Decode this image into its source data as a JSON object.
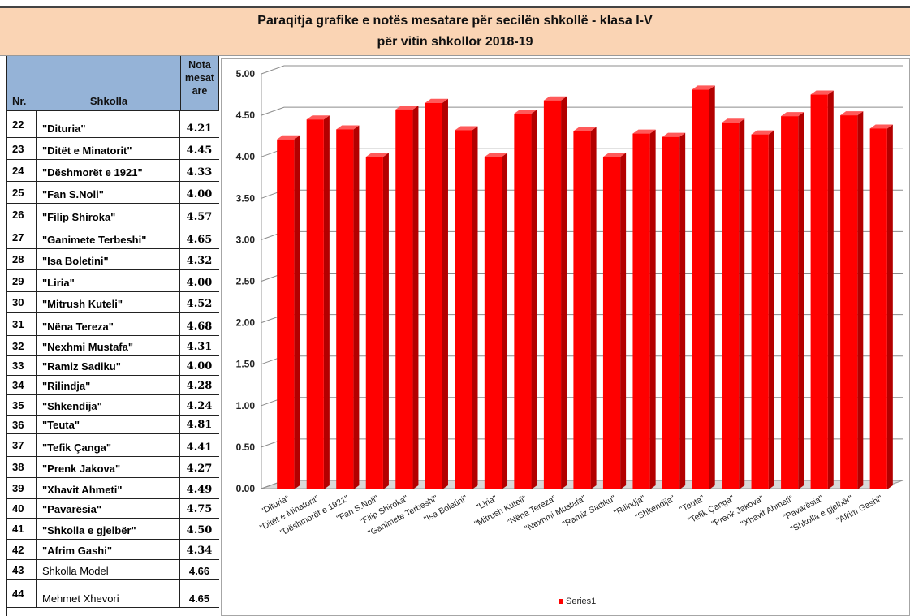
{
  "title": {
    "line1": "Paraqitja grafike e notës mesatare për secilën shkollë - klasa I-V",
    "line2": "për vitin shkollor  2018-19"
  },
  "table": {
    "headers": {
      "nr": "Nr.",
      "school": "Shkolla",
      "grade": "Nota mesat are"
    },
    "rows": [
      {
        "nr": "22",
        "name": "\"Dituria\"",
        "value": "4.21"
      },
      {
        "nr": "23",
        "name": "\"Ditët e Minatorit\"",
        "value": "4.45"
      },
      {
        "nr": "24",
        "name": "\"Dëshmorët e 1921\"",
        "value": "4.33"
      },
      {
        "nr": "25",
        "name": "\"Fan S.Noli\"",
        "value": "4.00"
      },
      {
        "nr": "26",
        "name": "\"Filip Shiroka\"",
        "value": "4.57"
      },
      {
        "nr": "27",
        "name": "\"Ganimete Terbeshi\"",
        "value": "4.65"
      },
      {
        "nr": "28",
        "name": "\"Isa Boletini\"",
        "value": "4.32"
      },
      {
        "nr": "29",
        "name": "\"Liria\"",
        "value": "4.00"
      },
      {
        "nr": "30",
        "name": "\"Mitrush Kuteli\"",
        "value": "4.52"
      },
      {
        "nr": "31",
        "name": "\"Nëna Tereza\"",
        "value": "4.68"
      },
      {
        "nr": "32",
        "name": "\"Nexhmi Mustafa\"",
        "value": "4.31"
      },
      {
        "nr": "33",
        "name": "\"Ramiz Sadiku\"",
        "value": "4.00"
      },
      {
        "nr": "34",
        "name": "\"Rilindja\"",
        "value": "4.28"
      },
      {
        "nr": "35",
        "name": "\"Shkendija\"",
        "value": "4.24"
      },
      {
        "nr": "36",
        "name": "\"Teuta\"",
        "value": "4.81"
      },
      {
        "nr": "37",
        "name": "\"Tefik Çanga\"",
        "value": "4.41"
      },
      {
        "nr": "38",
        "name": "\"Prenk Jakova\"",
        "value": "4.27"
      },
      {
        "nr": "39",
        "name": "\"Xhavit Ahmeti\"",
        "value": "4.49"
      },
      {
        "nr": "40",
        "name": "\"Pavarësia\"",
        "value": "4.75"
      },
      {
        "nr": "41",
        "name": "\"Shkolla e gjelbër\"",
        "value": "4.50"
      },
      {
        "nr": "42",
        "name": "\"Afrim Gashi\"",
        "value": "4.34"
      },
      {
        "nr": "43",
        "name": "Shkolla Model",
        "value": "4.66"
      },
      {
        "nr": "44",
        "name": "Mehmet Xhevori",
        "value": "4.65"
      }
    ]
  },
  "chart_data": {
    "type": "bar",
    "categories": [
      "\"Dituria\"",
      "\"Ditët e Minatorit\"",
      "\"Dëshmorët e 1921\"",
      "\"Fan S.Noli\"",
      "\"Filip Shiroka\"",
      "\"Ganimete Terbeshi\"",
      "\"Isa Boletini\"",
      "\"Liria\"",
      "\"Mitrush Kuteli\"",
      "\"Nëna Tereza\"",
      "\"Nexhmi Mustafa\"",
      "\"Ramiz Sadiku\"",
      "\"Rilindja\"",
      "\"Shkendija\"",
      "\"Teuta\"",
      "\"Tefik Çanga\"",
      "\"Prenk Jakova\"",
      "\"Xhavit Ahmeti\"",
      "\"Pavarësia\"",
      "\"Shkolla e gjelbër\"",
      "\"Afrim Gashi\""
    ],
    "series": [
      {
        "name": "Series1",
        "values": [
          4.21,
          4.45,
          4.33,
          4.0,
          4.57,
          4.65,
          4.32,
          4.0,
          4.52,
          4.68,
          4.31,
          4.0,
          4.28,
          4.24,
          4.81,
          4.41,
          4.27,
          4.49,
          4.75,
          4.5,
          4.34
        ]
      }
    ],
    "ylim": [
      0,
      5
    ],
    "yticks": [
      "0.00",
      "0.50",
      "1.00",
      "1.50",
      "2.00",
      "2.50",
      "3.00",
      "3.50",
      "4.00",
      "4.50",
      "5.00"
    ],
    "grid": true,
    "legend": "bottom",
    "colors": {
      "bar_front": "#ff0000",
      "bar_side": "#b30000",
      "bar_top": "#ff5a5a",
      "frame": "#a6a6a6"
    }
  }
}
